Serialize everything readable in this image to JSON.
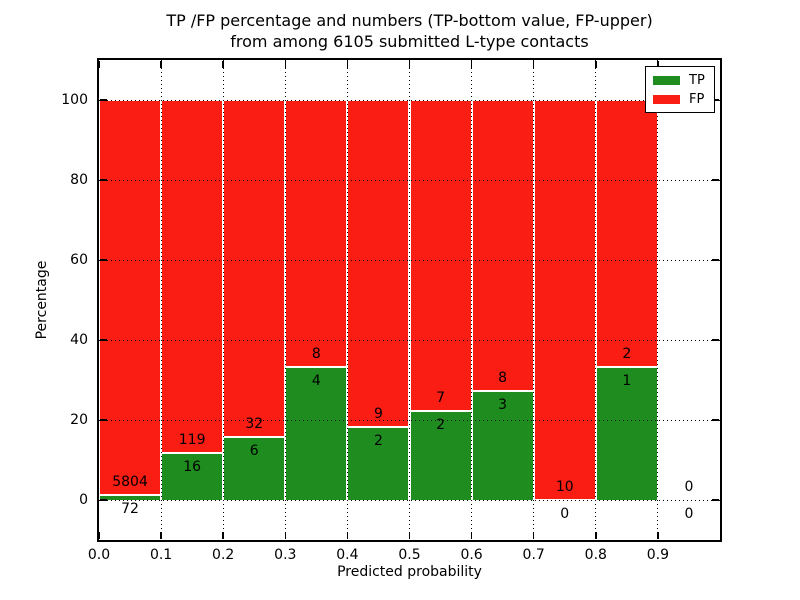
{
  "title": {
    "line1": "TP /FP percentage and numbers (TP-bottom value, FP-upper)",
    "line2": "from among 6105 submitted L-type contacts"
  },
  "axes": {
    "xlabel": "Predicted probability",
    "ylabel": "Percentage"
  },
  "legend": {
    "items": [
      {
        "label": "TP",
        "color": "#1e8c1e"
      },
      {
        "label": "FP",
        "color": "#fa1d14"
      }
    ]
  },
  "chart_data": {
    "type": "bar",
    "stacked": true,
    "title": "TP /FP percentage and numbers (TP-bottom value, FP-upper) from among 6105 submitted L-type contacts",
    "xlabel": "Predicted probability",
    "ylabel": "Percentage",
    "xlim": [
      0.0,
      1.0
    ],
    "ylim": [
      -10,
      110
    ],
    "grid": "dotted, drawn above bars",
    "legend_position": "upper right",
    "xticks": [
      "0.0",
      "0.1",
      "0.2",
      "0.3",
      "0.4",
      "0.5",
      "0.6",
      "0.7",
      "0.8",
      "0.9"
    ],
    "yticks": [
      0,
      20,
      40,
      60,
      80,
      100
    ],
    "colors": {
      "tp": "#1e8c1e",
      "fp": "#fa1d14",
      "bar_edge": "#ffffff"
    },
    "total_contacts": 6105,
    "categories": [
      "0.0-0.1",
      "0.1-0.2",
      "0.2-0.3",
      "0.3-0.4",
      "0.4-0.5",
      "0.5-0.6",
      "0.6-0.7",
      "0.7-0.8",
      "0.8-0.9",
      "0.9-1.0"
    ],
    "series": [
      {
        "name": "TP",
        "counts": [
          72,
          16,
          6,
          4,
          2,
          2,
          3,
          0,
          1,
          0
        ]
      },
      {
        "name": "FP",
        "counts": [
          5804,
          119,
          32,
          8,
          9,
          7,
          8,
          10,
          2,
          0
        ]
      }
    ],
    "bins": [
      {
        "range": "0.0-0.1",
        "tp": 72,
        "fp": 5804,
        "tp_pct": 1.23,
        "has_bar": true
      },
      {
        "range": "0.1-0.2",
        "tp": 16,
        "fp": 119,
        "tp_pct": 11.85,
        "has_bar": true
      },
      {
        "range": "0.2-0.3",
        "tp": 6,
        "fp": 32,
        "tp_pct": 15.79,
        "has_bar": true
      },
      {
        "range": "0.3-0.4",
        "tp": 4,
        "fp": 8,
        "tp_pct": 33.33,
        "has_bar": true
      },
      {
        "range": "0.4-0.5",
        "tp": 2,
        "fp": 9,
        "tp_pct": 18.18,
        "has_bar": true
      },
      {
        "range": "0.5-0.6",
        "tp": 2,
        "fp": 7,
        "tp_pct": 22.22,
        "has_bar": true
      },
      {
        "range": "0.6-0.7",
        "tp": 3,
        "fp": 8,
        "tp_pct": 27.27,
        "has_bar": true
      },
      {
        "range": "0.7-0.8",
        "tp": 0,
        "fp": 10,
        "tp_pct": 0.0,
        "has_bar": true
      },
      {
        "range": "0.8-0.9",
        "tp": 1,
        "fp": 2,
        "tp_pct": 33.33,
        "has_bar": true
      },
      {
        "range": "0.9-1.0",
        "tp": 0,
        "fp": 0,
        "tp_pct": 0.0,
        "has_bar": false
      }
    ]
  }
}
